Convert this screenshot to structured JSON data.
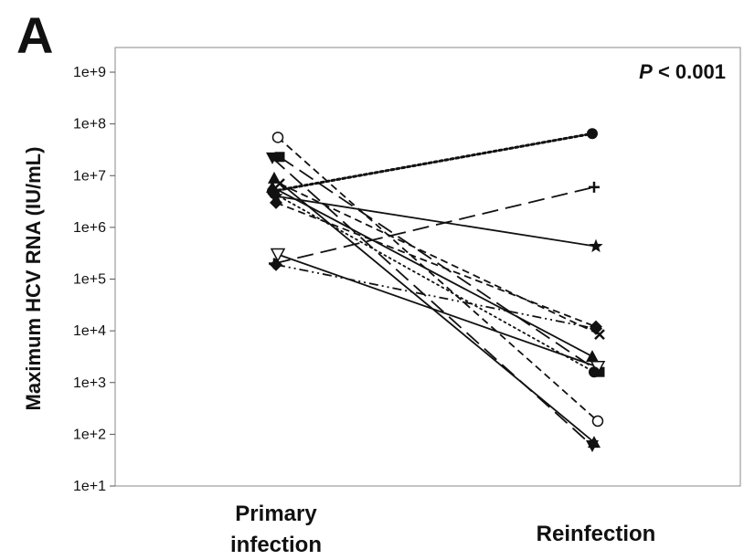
{
  "panel_label": "A",
  "chart_data": {
    "type": "line",
    "title": "",
    "xlabel": "",
    "ylabel": "Maximum HCV RNA (IU/mL)",
    "categories": [
      "Primary infection",
      "Reinfection"
    ],
    "category_label_lines": [
      [
        "Primary",
        "infection"
      ],
      [
        "Reinfection"
      ]
    ],
    "y_scale": "log10",
    "ylim": [
      10,
      3000000000
    ],
    "y_ticks": [
      10,
      100,
      1000,
      10000,
      100000,
      1000000,
      10000000,
      100000000,
      1000000000
    ],
    "y_tick_labels": [
      "1e+1",
      "1e+2",
      "1e+3",
      "1e+4",
      "1e+5",
      "1e+6",
      "1e+7",
      "1e+8",
      "1e+9"
    ],
    "grid": false,
    "legend": "none",
    "annotation": {
      "p_symbol": "P",
      "rest": " < 0.001"
    },
    "series": [
      {
        "marker": "circle-filled",
        "dash": "dotted-thick",
        "values": [
          5000000,
          65000000
        ]
      },
      {
        "marker": "plus",
        "dash": "long-dash",
        "values": [
          200000,
          6000000
        ]
      },
      {
        "marker": "star",
        "dash": "solid",
        "values": [
          4000000,
          430000
        ]
      },
      {
        "marker": "circle-open",
        "dash": "dashed",
        "values": [
          55000000,
          180
        ]
      },
      {
        "marker": "square-filled",
        "dash": "long-dash",
        "values": [
          23000000,
          1600
        ]
      },
      {
        "marker": "triangle-down-filled",
        "dash": "long-dash",
        "values": [
          22000000,
          60
        ]
      },
      {
        "marker": "triangle-up-filled",
        "dash": "solid",
        "values": [
          9000000,
          70
        ]
      },
      {
        "marker": "diamond-filled",
        "dash": "dash-dot-dot",
        "values": [
          190000,
          11000
        ]
      },
      {
        "marker": "triangle-down-open",
        "dash": "solid",
        "values": [
          300000,
          2000
        ]
      },
      {
        "marker": "x",
        "dash": "dashed",
        "values": [
          7000000,
          8500
        ]
      },
      {
        "marker": "triangle-up-filled",
        "dash": "solid",
        "values": [
          6000000,
          3200
        ]
      },
      {
        "marker": "circle-filled",
        "dash": "dotted",
        "values": [
          4500000,
          1600
        ]
      },
      {
        "marker": "diamond-filled",
        "dash": "dashed",
        "values": [
          3000000,
          12000
        ]
      }
    ]
  }
}
